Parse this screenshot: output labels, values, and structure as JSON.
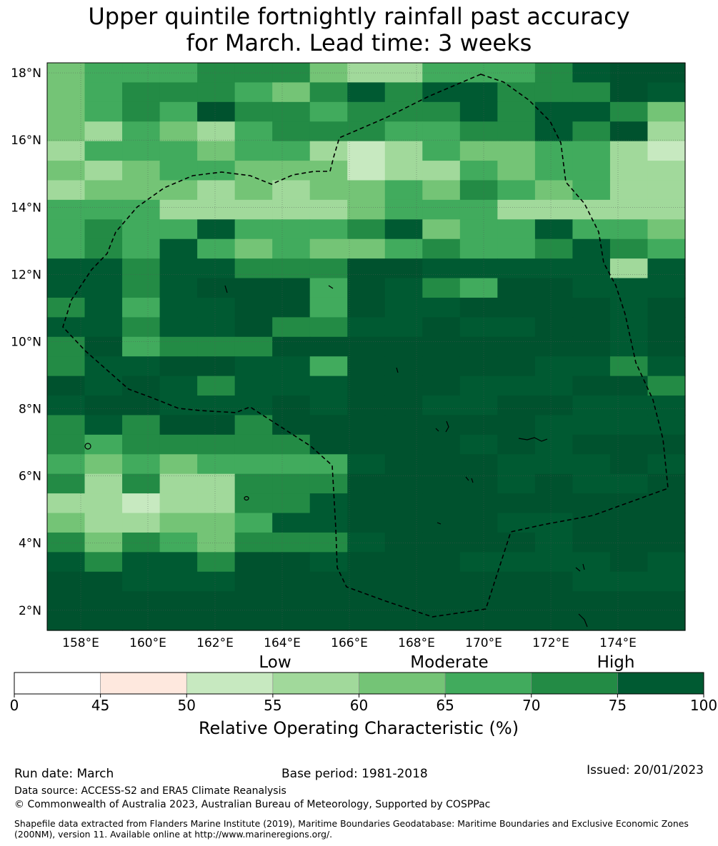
{
  "title": {
    "line1": "Upper quintile fortnightly rainfall past accuracy",
    "line2": "for March. Lead time: 3 weeks"
  },
  "map": {
    "lat_ticks": [
      "18°N",
      "16°N",
      "14°N",
      "12°N",
      "10°N",
      "8°N",
      "6°N",
      "4°N",
      "2°N"
    ],
    "lon_ticks": [
      "158°E",
      "160°E",
      "162°E",
      "164°E",
      "166°E",
      "168°E",
      "170°E",
      "172°E",
      "174°E"
    ],
    "lat_range": [
      1.4,
      18.3
    ],
    "lon_range": [
      157.0,
      176.0
    ],
    "boundary_style": "dashed black",
    "grid_rows": [
      "23334442113334566",
      "23444324545544465",
      "23436443444545542",
      "21321344433445461",
      "13332331013223310",
      "21233222011323311",
      "12221212232432311",
      "33311111233311111",
      "34335333452335332",
      "34353232234334543",
      "55455444665555515",
      "55456663654366555",
      "45355663655666656",
      "55455644556556656",
      "46344466666666656",
      "45566553666665545",
      "65654555666555664",
      "56655565665566555",
      "45466466666665555",
      "43444446666565666",
      "32323333566655565",
      "41411444666656556",
      "11011445666666666",
      "21122355666655666",
      "42432444566665666",
      "54554665666555565",
      "66555666666666555",
      "66666666666666666",
      "66666666666666666"
    ],
    "cell_colors": [
      "#c7e9c0",
      "#a1d99b",
      "#74c476",
      "#41ab5d",
      "#238b45",
      "#005a32",
      "#00522e"
    ]
  },
  "colorbar": {
    "category_labels": [
      "Low",
      "Moderate",
      "High"
    ],
    "ticks": [
      "0",
      "45",
      "50",
      "55",
      "60",
      "65",
      "70",
      "75",
      "100"
    ],
    "bins": [
      {
        "from": 0,
        "to": 45,
        "color": "#ffffff"
      },
      {
        "from": 45,
        "to": 50,
        "color": "#fee8de"
      },
      {
        "from": 50,
        "to": 55,
        "color": "#c7e9c0"
      },
      {
        "from": 55,
        "to": 60,
        "color": "#a1d99b"
      },
      {
        "from": 60,
        "to": 65,
        "color": "#74c476"
      },
      {
        "from": 65,
        "to": 70,
        "color": "#41ab5d"
      },
      {
        "from": 70,
        "to": 75,
        "color": "#238b45"
      },
      {
        "from": 75,
        "to": 100,
        "color": "#005a32"
      }
    ],
    "title": "Relative Operating Characteristic (%)"
  },
  "footer": {
    "run_date": "Run date: March",
    "base_period": "Base period: 1981-2018",
    "issued": "Issued: 20/01/2023",
    "data_source": "Data source: ACCESS-S2 and ERA5 Climate Reanalysis",
    "copyright": "© Commonwealth of Australia 2023, Australian Bureau of Meteorology, Supported by COSPPac",
    "shapefile": "Shapefile data extracted from Flanders Marine Institute (2019), Maritime Boundaries Geodatabase: Maritime Boundaries and Exclusive Economic Zones (200NM), version 11. Available online at http://www.marineregions.org/."
  }
}
